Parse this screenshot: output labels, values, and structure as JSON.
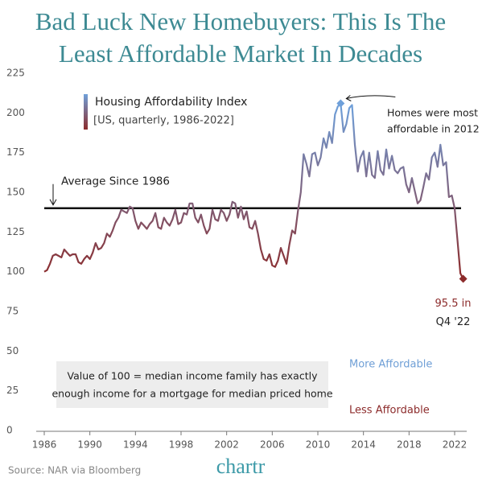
{
  "chart_data": {
    "type": "line",
    "title": [
      "Bad Luck New Homebuyers: This Is The",
      "Least Affordable Market In Decades"
    ],
    "legend_title": "[US, quarterly, 1986-2022]",
    "x": [
      1986,
      1986.25,
      1986.5,
      1986.75,
      1987,
      1987.25,
      1987.5,
      1987.75,
      1988,
      1988.25,
      1988.5,
      1988.75,
      1989,
      1989.25,
      1989.5,
      1989.75,
      1990,
      1990.25,
      1990.5,
      1990.75,
      1991,
      1991.25,
      1991.5,
      1991.75,
      1992,
      1992.25,
      1992.5,
      1992.75,
      1993,
      1993.25,
      1993.5,
      1993.75,
      1994,
      1994.25,
      1994.5,
      1994.75,
      1995,
      1995.25,
      1995.5,
      1995.75,
      1996,
      1996.25,
      1996.5,
      1996.75,
      1997,
      1997.25,
      1997.5,
      1997.75,
      1998,
      1998.25,
      1998.5,
      1998.75,
      1999,
      1999.25,
      1999.5,
      1999.75,
      2000,
      2000.25,
      2000.5,
      2000.75,
      2001,
      2001.25,
      2001.5,
      2001.75,
      2002,
      2002.25,
      2002.5,
      2002.75,
      2003,
      2003.25,
      2003.5,
      2003.75,
      2004,
      2004.25,
      2004.5,
      2004.75,
      2005,
      2005.25,
      2005.5,
      2005.75,
      2006,
      2006.25,
      2006.5,
      2006.75,
      2007,
      2007.25,
      2007.5,
      2007.75,
      2008,
      2008.25,
      2008.5,
      2008.75,
      2009,
      2009.25,
      2009.5,
      2009.75,
      2010,
      2010.25,
      2010.5,
      2010.75,
      2011,
      2011.25,
      2011.5,
      2011.75,
      2012,
      2012.25,
      2012.5,
      2012.75,
      2013,
      2013.25,
      2013.5,
      2013.75,
      2014,
      2014.25,
      2014.5,
      2014.75,
      2015,
      2015.25,
      2015.5,
      2015.75,
      2016,
      2016.25,
      2016.5,
      2016.75,
      2017,
      2017.25,
      2017.5,
      2017.75,
      2018,
      2018.25,
      2018.5,
      2018.75,
      2019,
      2019.25,
      2019.5,
      2019.75,
      2020,
      2020.25,
      2020.5,
      2020.75,
      2021,
      2021.25,
      2021.5,
      2021.75,
      2022,
      2022.25,
      2022.5,
      2022.75
    ],
    "series": [
      {
        "name": "Housing Affordability Index",
        "color_low": "#8c2b2b",
        "color_high": "#6fa0da",
        "values": [
          100,
          101,
          105,
          110,
          111,
          110,
          109,
          114,
          112,
          110,
          111,
          111,
          106,
          105,
          108,
          110,
          108,
          112,
          118,
          114,
          115,
          118,
          124,
          122,
          126,
          131,
          134,
          139,
          138,
          137,
          141,
          140,
          132,
          127,
          131,
          129,
          127,
          130,
          132,
          137,
          128,
          127,
          134,
          131,
          129,
          133,
          139,
          130,
          131,
          137,
          136,
          143,
          143,
          134,
          131,
          136,
          129,
          124,
          127,
          139,
          133,
          132,
          139,
          137,
          132,
          136,
          144,
          143,
          134,
          141,
          133,
          138,
          128,
          127,
          132,
          124,
          114,
          108,
          107,
          111,
          104,
          103,
          107,
          115,
          110,
          105,
          117,
          126,
          124,
          138,
          150,
          174,
          168,
          160,
          174,
          175,
          167,
          172,
          184,
          178,
          188,
          181,
          199,
          204,
          206,
          188,
          193,
          203,
          205,
          180,
          163,
          172,
          176,
          160,
          175,
          161,
          159,
          176,
          164,
          161,
          177,
          165,
          173,
          164,
          162,
          165,
          166,
          155,
          150,
          159,
          151,
          143,
          145,
          153,
          162,
          158,
          172,
          175,
          166,
          180,
          167,
          169,
          147,
          148,
          140,
          120,
          99,
          95.5
        ]
      }
    ],
    "markers": [
      104,
      147
    ],
    "xlim": [
      1986,
      2022.75
    ],
    "xticks": [
      1986,
      1990,
      1994,
      1998,
      2002,
      2006,
      2010,
      2014,
      2018,
      2022
    ],
    "ylim": [
      0,
      225
    ],
    "yticks": [
      0,
      25,
      50,
      75,
      100,
      125,
      150,
      175,
      200,
      225
    ],
    "reference_line": {
      "value": 140,
      "label": "Average Since 1986"
    },
    "annotations": {
      "peak": [
        "Homes were most",
        "affordable in 2012"
      ],
      "last": [
        "95.5 in",
        "Q4 '22"
      ],
      "more": "More Affordable",
      "less": "Less Affordable",
      "note": [
        "Value of 100 = median income family has exactly",
        "enough income for a mortgage for median priced home"
      ]
    },
    "source": "Source: NAR via Bloomberg",
    "brand": "chartr"
  }
}
